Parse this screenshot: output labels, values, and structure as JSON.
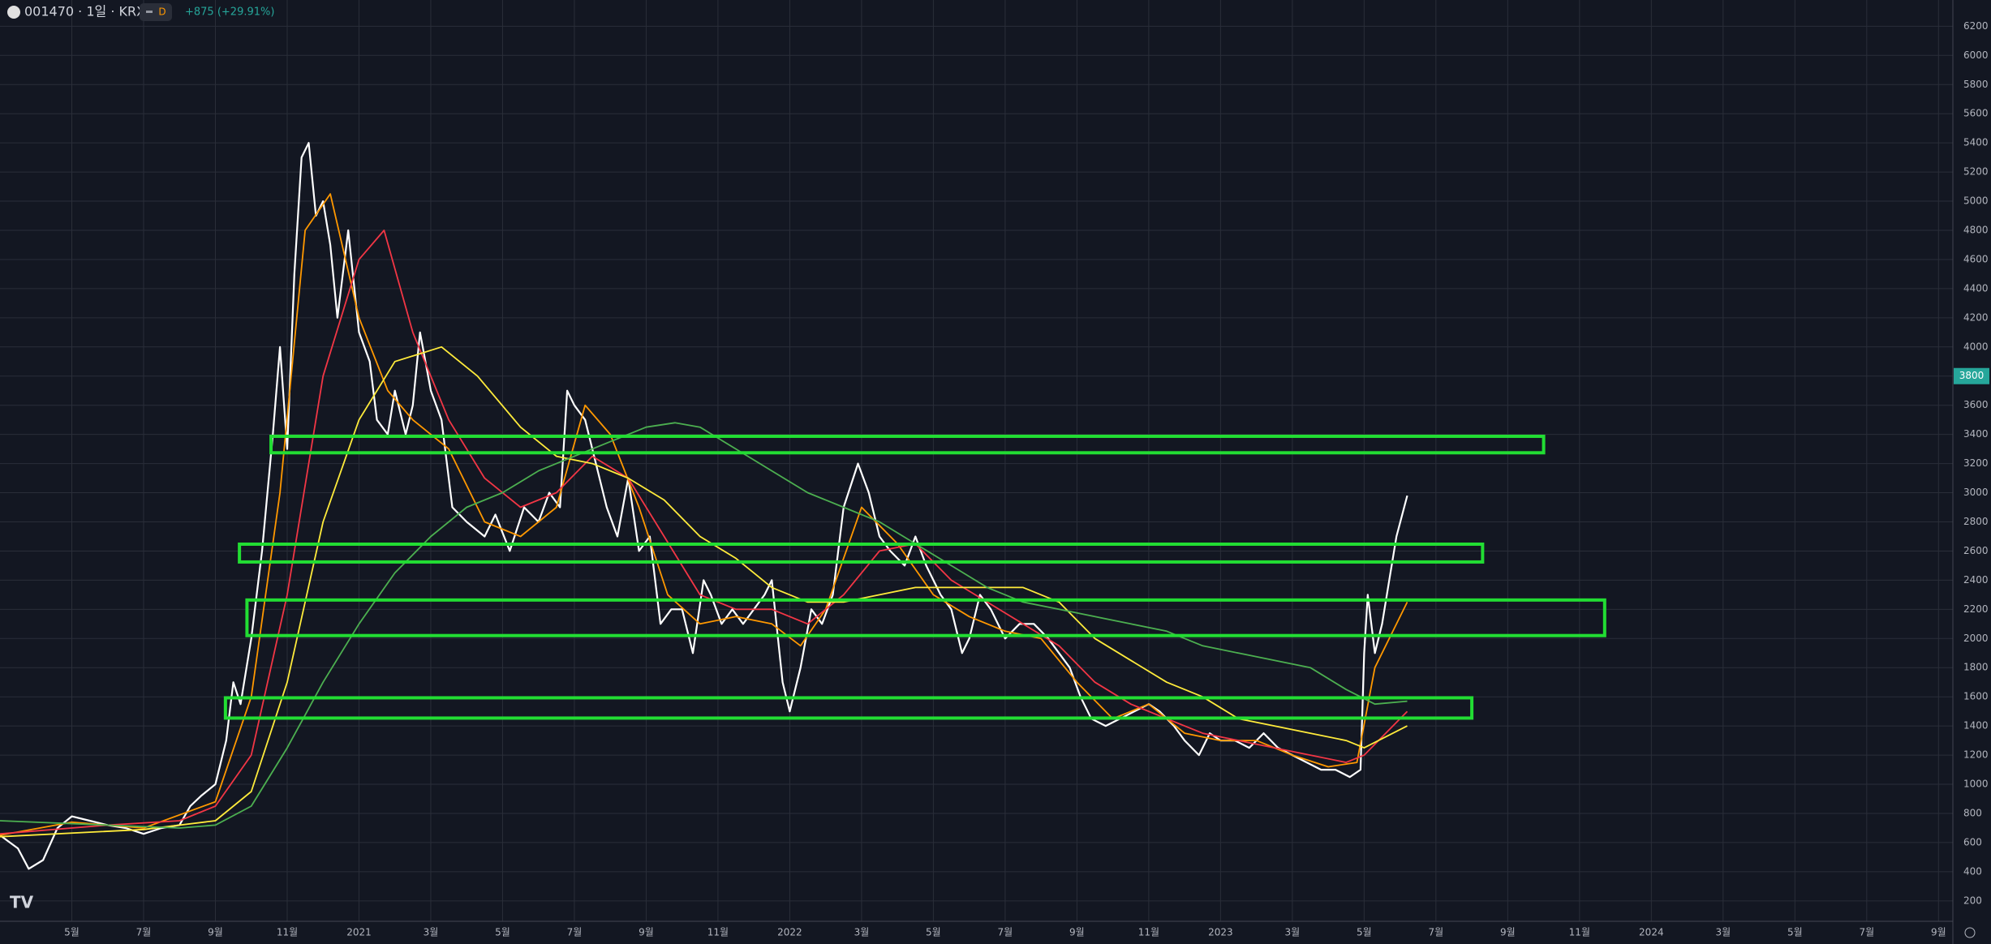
{
  "header": {
    "symbol": "001470 · 1일 · KRX",
    "badge": "D",
    "change": "+875 (+29.91%)"
  },
  "chart_data": {
    "type": "line",
    "grid": true,
    "xlim": [
      0,
      54.4
    ],
    "ylim": [
      60,
      6380
    ],
    "xticks": [
      {
        "value": 2,
        "label": "5월"
      },
      {
        "value": 4,
        "label": "7월"
      },
      {
        "value": 6,
        "label": "9월"
      },
      {
        "value": 8,
        "label": "11월"
      },
      {
        "value": 10,
        "label": "2021"
      },
      {
        "value": 12,
        "label": "3월"
      },
      {
        "value": 14,
        "label": "5월"
      },
      {
        "value": 16,
        "label": "7월"
      },
      {
        "value": 18,
        "label": "9월"
      },
      {
        "value": 20,
        "label": "11월"
      },
      {
        "value": 22,
        "label": "2022"
      },
      {
        "value": 24,
        "label": "3월"
      },
      {
        "value": 26,
        "label": "5월"
      },
      {
        "value": 28,
        "label": "7월"
      },
      {
        "value": 30,
        "label": "9월"
      },
      {
        "value": 32,
        "label": "11월"
      },
      {
        "value": 34,
        "label": "2023"
      },
      {
        "value": 36,
        "label": "3월"
      },
      {
        "value": 38,
        "label": "5월"
      },
      {
        "value": 40,
        "label": "7월"
      },
      {
        "value": 42,
        "label": "9월"
      },
      {
        "value": 44,
        "label": "11월"
      },
      {
        "value": 46,
        "label": "2024"
      },
      {
        "value": 48,
        "label": "3월"
      },
      {
        "value": 50,
        "label": "5월"
      },
      {
        "value": 52,
        "label": "7월"
      },
      {
        "value": 54,
        "label": "9월"
      }
    ],
    "yticks": [
      200,
      400,
      600,
      800,
      1000,
      1200,
      1400,
      1600,
      1800,
      2000,
      2200,
      2400,
      2600,
      2800,
      3000,
      3200,
      3400,
      3600,
      3800,
      4000,
      4200,
      4400,
      4600,
      4800,
      5000,
      5200,
      5400,
      5600,
      5800,
      6000,
      6200
    ],
    "last_price": 3800,
    "last_price_color": "#26a69a",
    "series": [
      {
        "color": "#ffffff",
        "x": [
          0,
          0.5,
          0.8,
          1.2,
          1.6,
          2,
          2.5,
          3,
          3.5,
          4,
          4.5,
          5,
          5.3,
          5.6,
          6,
          6.3,
          6.5,
          6.7,
          7,
          7.3,
          7.6,
          7.8,
          8,
          8.2,
          8.4,
          8.6,
          8.8,
          9,
          9.2,
          9.4,
          9.7,
          10,
          10.3,
          10.5,
          10.8,
          11,
          11.3,
          11.5,
          11.7,
          12,
          12.3,
          12.6,
          13,
          13.5,
          13.8,
          14.2,
          14.6,
          15,
          15.3,
          15.6,
          15.8,
          16,
          16.3,
          16.6,
          16.9,
          17.2,
          17.5,
          17.8,
          18.1,
          18.4,
          18.7,
          19,
          19.3,
          19.6,
          19.8,
          20.1,
          20.4,
          20.7,
          21,
          21.3,
          21.5,
          21.8,
          22,
          22.3,
          22.6,
          22.9,
          23.2,
          23.5,
          23.9,
          24.2,
          24.5,
          24.8,
          25.2,
          25.5,
          25.8,
          26.2,
          26.5,
          26.8,
          27,
          27.3,
          27.6,
          28,
          28.4,
          28.8,
          29.2,
          29.5,
          29.8,
          30.1,
          30.4,
          30.8,
          31.2,
          31.6,
          32,
          32.3,
          32.7,
          33,
          33.4,
          33.7,
          34,
          34.4,
          34.8,
          35.2,
          35.6,
          36,
          36.4,
          36.8,
          37.2,
          37.6,
          37.9,
          38,
          38.1,
          38.3,
          38.5,
          38.7,
          38.9,
          39.2
        ],
        "values": [
          650,
          560,
          420,
          480,
          700,
          780,
          750,
          720,
          700,
          660,
          700,
          720,
          850,
          920,
          1000,
          1300,
          1700,
          1550,
          2000,
          2600,
          3400,
          4000,
          3300,
          4500,
          5300,
          5400,
          4900,
          5000,
          4700,
          4200,
          4800,
          4100,
          3900,
          3500,
          3400,
          3700,
          3400,
          3600,
          4100,
          3700,
          3500,
          2900,
          2800,
          2700,
          2850,
          2600,
          2900,
          2800,
          3000,
          2900,
          3700,
          3600,
          3500,
          3200,
          2900,
          2700,
          3100,
          2600,
          2700,
          2100,
          2200,
          2200,
          1900,
          2400,
          2300,
          2100,
          2200,
          2100,
          2200,
          2300,
          2400,
          1700,
          1500,
          1800,
          2200,
          2100,
          2300,
          2900,
          3200,
          3000,
          2700,
          2600,
          2500,
          2700,
          2500,
          2300,
          2200,
          1900,
          2000,
          2300,
          2200,
          2000,
          2100,
          2100,
          2000,
          1900,
          1800,
          1600,
          1450,
          1400,
          1450,
          1500,
          1550,
          1500,
          1400,
          1300,
          1200,
          1350,
          1300,
          1300,
          1250,
          1350,
          1250,
          1200,
          1150,
          1100,
          1100,
          1050,
          1100,
          1900,
          2300,
          1900,
          2100,
          2400,
          2700,
          2980
        ]
      },
      {
        "color": "#ff9800",
        "x": [
          0,
          2,
          4,
          6,
          7,
          7.8,
          8.5,
          9.2,
          10,
          10.8,
          11.5,
          12.5,
          13.5,
          14.5,
          15.5,
          16.3,
          17,
          17.8,
          18.6,
          19.5,
          20.5,
          21.5,
          22.3,
          23,
          24,
          25,
          26,
          27,
          28,
          29,
          30,
          31,
          32,
          33,
          34,
          35,
          36,
          37,
          37.8,
          38.3,
          39.2
        ],
        "values": [
          650,
          740,
          700,
          880,
          1600,
          3000,
          4800,
          5050,
          4200,
          3700,
          3500,
          3300,
          2800,
          2700,
          2900,
          3600,
          3400,
          2900,
          2300,
          2100,
          2150,
          2100,
          1950,
          2200,
          2900,
          2650,
          2300,
          2150,
          2050,
          2000,
          1700,
          1450,
          1550,
          1350,
          1300,
          1300,
          1200,
          1120,
          1150,
          1800,
          2250
        ]
      },
      {
        "color": "#f23645",
        "x": [
          0,
          3,
          5,
          6,
          7,
          8,
          9,
          10,
          10.7,
          11.5,
          12.5,
          13.5,
          14.5,
          15.5,
          16.5,
          17.5,
          18.5,
          19.5,
          20.5,
          21.5,
          22.5,
          23.5,
          24.5,
          25.5,
          26.5,
          27.5,
          28.5,
          29.5,
          30.5,
          31.5,
          32.5,
          33.5,
          34.5,
          35.5,
          36.5,
          37.5,
          38,
          39.2
        ],
        "values": [
          660,
          720,
          750,
          850,
          1200,
          2300,
          3800,
          4600,
          4800,
          4100,
          3500,
          3100,
          2900,
          3000,
          3250,
          3100,
          2700,
          2300,
          2200,
          2200,
          2100,
          2300,
          2600,
          2650,
          2400,
          2250,
          2100,
          1950,
          1700,
          1550,
          1450,
          1350,
          1300,
          1250,
          1200,
          1150,
          1200,
          1500
        ]
      },
      {
        "color": "#ffeb3b",
        "x": [
          0,
          4,
          6,
          7,
          8,
          9,
          10,
          11,
          12.3,
          13.3,
          14.5,
          15.5,
          16.5,
          17.5,
          18.5,
          19.5,
          20.5,
          21.5,
          22.5,
          23.5,
          24.5,
          25.5,
          26.5,
          27.5,
          28.5,
          29.5,
          30.5,
          31.5,
          32.5,
          33.5,
          34.5,
          35.5,
          36.5,
          37.5,
          38,
          39.2
        ],
        "values": [
          640,
          690,
          750,
          950,
          1700,
          2800,
          3500,
          3900,
          4000,
          3800,
          3450,
          3250,
          3200,
          3100,
          2950,
          2700,
          2550,
          2350,
          2250,
          2250,
          2300,
          2350,
          2350,
          2350,
          2350,
          2250,
          2000,
          1850,
          1700,
          1600,
          1450,
          1400,
          1350,
          1300,
          1250,
          1400
        ]
      },
      {
        "color": "#4caf50",
        "x": [
          0,
          3,
          5,
          6,
          7,
          8,
          9,
          10,
          11,
          12,
          13,
          14,
          15,
          16,
          17,
          18,
          18.8,
          19.5,
          20.5,
          21.5,
          22.5,
          23.5,
          24.5,
          25.5,
          26.5,
          27.5,
          28.5,
          29.5,
          30.5,
          31.5,
          32.5,
          33.5,
          34.5,
          35.5,
          36.5,
          37.5,
          38.3,
          39.2
        ],
        "values": [
          750,
          720,
          700,
          720,
          850,
          1250,
          1700,
          2100,
          2450,
          2700,
          2900,
          3000,
          3150,
          3250,
          3350,
          3450,
          3480,
          3450,
          3300,
          3150,
          3000,
          2900,
          2800,
          2650,
          2500,
          2350,
          2250,
          2200,
          2150,
          2100,
          2050,
          1950,
          1900,
          1850,
          1800,
          1650,
          1550,
          1570
        ]
      }
    ],
    "zones_color": "#22dd33",
    "zones": [
      {
        "x": [
          7.55,
          43.0
        ],
        "y": [
          3274,
          3387
        ]
      },
      {
        "x": [
          6.67,
          41.3
        ],
        "y": [
          2525,
          2647
        ]
      },
      {
        "x": [
          6.88,
          44.7
        ],
        "y": [
          2020,
          2264
        ]
      },
      {
        "x": [
          6.28,
          41.0
        ],
        "y": [
          1454,
          1593
        ]
      }
    ]
  }
}
